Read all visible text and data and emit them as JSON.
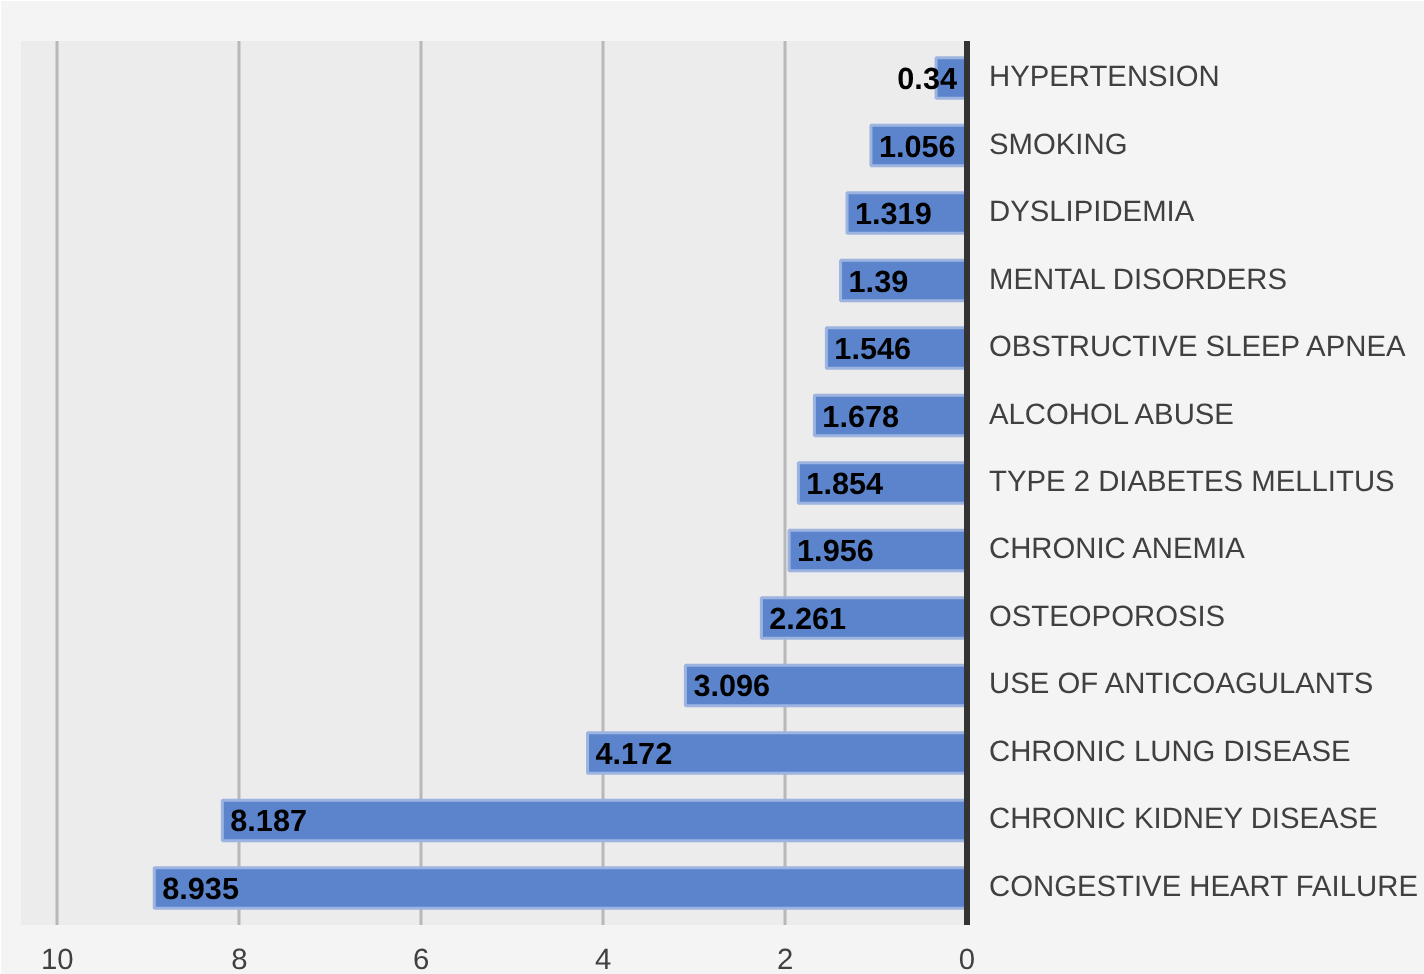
{
  "chart_data": {
    "type": "bar",
    "orientation": "horizontal",
    "categories": [
      "HYPERTENSION",
      "SMOKING",
      "DYSLIPIDEMIA",
      "MENTAL DISORDERS",
      "OBSTRUCTIVE SLEEP APNEA",
      "ALCOHOL ABUSE",
      "TYPE 2 DIABETES MELLITUS",
      "CHRONIC ANEMIA",
      "OSTEOPOROSIS",
      "USE OF ANTICOAGULANTS",
      "CHRONIC LUNG DISEASE",
      "CHRONIC KIDNEY DISEASE",
      "CONGESTIVE HEART FAILURE"
    ],
    "values": [
      0.34,
      1.056,
      1.319,
      1.39,
      1.546,
      1.678,
      1.854,
      1.956,
      2.261,
      3.096,
      4.172,
      8.187,
      8.935
    ],
    "color": "#5b84cc",
    "xlim": [
      10.4,
      0
    ],
    "xticks": [
      10,
      8,
      6,
      4,
      2,
      0
    ],
    "grid": "x",
    "data_labels": true
  }
}
